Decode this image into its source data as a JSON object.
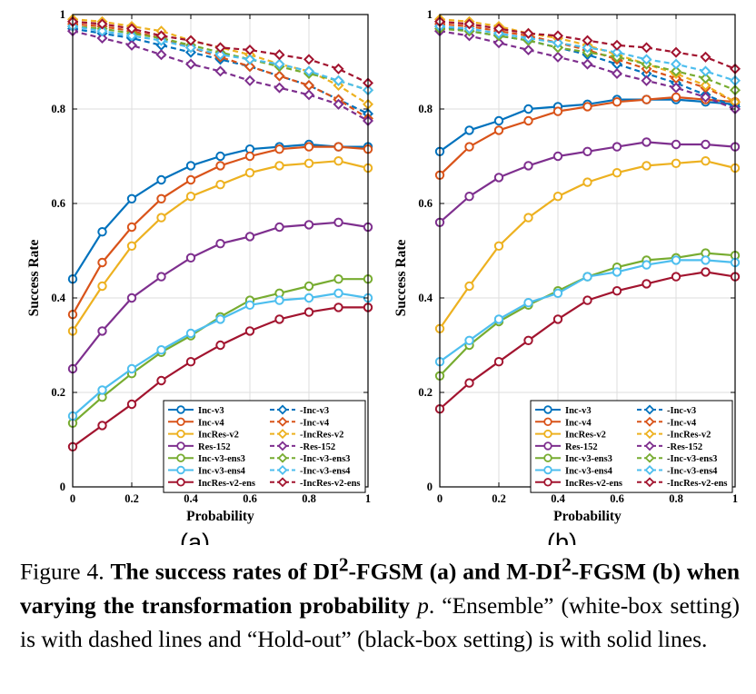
{
  "chart_data": [
    {
      "type": "line",
      "panel_label": "(a)",
      "xlabel": "Probability",
      "ylabel": "Success Rate",
      "xlim": [
        0,
        1
      ],
      "ylim": [
        0,
        1
      ],
      "x": [
        0,
        0.1,
        0.2,
        0.3,
        0.4,
        0.5,
        0.6,
        0.7,
        0.8,
        0.9,
        1.0
      ],
      "xticks": [
        "0",
        "0.2",
        "0.4",
        "0.6",
        "0.8",
        "1"
      ],
      "yticks": [
        "0",
        "0.2",
        "0.4",
        "0.6",
        "0.8",
        "1"
      ],
      "grid": true,
      "legend_position": "bottom-right",
      "series": [
        {
          "name": "Inc-v3",
          "style": "solid",
          "marker": "circle",
          "color": "#0072BD",
          "values": [
            0.44,
            0.54,
            0.61,
            0.65,
            0.68,
            0.7,
            0.715,
            0.72,
            0.725,
            0.72,
            0.72
          ]
        },
        {
          "name": "Inc-v4",
          "style": "solid",
          "marker": "circle",
          "color": "#D95319",
          "values": [
            0.365,
            0.475,
            0.55,
            0.61,
            0.65,
            0.68,
            0.7,
            0.715,
            0.72,
            0.72,
            0.715
          ]
        },
        {
          "name": "IncRes-v2",
          "style": "solid",
          "marker": "circle",
          "color": "#EDB120",
          "values": [
            0.33,
            0.425,
            0.51,
            0.57,
            0.615,
            0.64,
            0.665,
            0.68,
            0.685,
            0.69,
            0.675
          ]
        },
        {
          "name": "Res-152",
          "style": "solid",
          "marker": "circle",
          "color": "#7E2F8E",
          "values": [
            0.25,
            0.33,
            0.4,
            0.445,
            0.485,
            0.515,
            0.53,
            0.55,
            0.555,
            0.56,
            0.55
          ]
        },
        {
          "name": "Inc-v3-ens3",
          "style": "solid",
          "marker": "circle",
          "color": "#77AC30",
          "values": [
            0.135,
            0.19,
            0.24,
            0.285,
            0.32,
            0.36,
            0.395,
            0.41,
            0.425,
            0.44,
            0.44
          ]
        },
        {
          "name": "Inc-v3-ens4",
          "style": "solid",
          "marker": "circle",
          "color": "#4DBEEE",
          "values": [
            0.15,
            0.205,
            0.25,
            0.29,
            0.325,
            0.355,
            0.385,
            0.395,
            0.4,
            0.41,
            0.4
          ]
        },
        {
          "name": "IncRes-v2-ens",
          "style": "solid",
          "marker": "circle",
          "color": "#A2142F",
          "values": [
            0.085,
            0.13,
            0.175,
            0.225,
            0.265,
            0.3,
            0.33,
            0.355,
            0.37,
            0.38,
            0.38
          ]
        },
        {
          "name": "-Inc-v3",
          "style": "dashed",
          "marker": "diamond",
          "color": "#0072BD",
          "values": [
            0.97,
            0.96,
            0.95,
            0.935,
            0.92,
            0.905,
            0.89,
            0.87,
            0.85,
            0.82,
            0.79
          ]
        },
        {
          "name": "-Inc-v4",
          "style": "dashed",
          "marker": "diamond",
          "color": "#D95319",
          "values": [
            0.98,
            0.975,
            0.965,
            0.95,
            0.93,
            0.91,
            0.89,
            0.87,
            0.85,
            0.82,
            0.78
          ]
        },
        {
          "name": "-IncRes-v2",
          "style": "dashed",
          "marker": "diamond",
          "color": "#EDB120",
          "values": [
            0.99,
            0.985,
            0.975,
            0.965,
            0.945,
            0.93,
            0.915,
            0.895,
            0.88,
            0.85,
            0.81
          ]
        },
        {
          "name": "-Res-152",
          "style": "dashed",
          "marker": "diamond",
          "color": "#7E2F8E",
          "values": [
            0.965,
            0.95,
            0.935,
            0.915,
            0.895,
            0.88,
            0.86,
            0.845,
            0.83,
            0.81,
            0.775
          ]
        },
        {
          "name": "-Inc-v3-ens3",
          "style": "dashed",
          "marker": "diamond",
          "color": "#77AC30",
          "values": [
            0.975,
            0.97,
            0.96,
            0.95,
            0.935,
            0.92,
            0.905,
            0.89,
            0.875,
            0.86,
            0.84
          ]
        },
        {
          "name": "-Inc-v3-ens4",
          "style": "dashed",
          "marker": "diamond",
          "color": "#4DBEEE",
          "values": [
            0.975,
            0.965,
            0.955,
            0.945,
            0.93,
            0.915,
            0.905,
            0.895,
            0.88,
            0.86,
            0.84
          ]
        },
        {
          "name": "-IncRes-v2-ens",
          "style": "dashed",
          "marker": "diamond",
          "color": "#A2142F",
          "values": [
            0.985,
            0.98,
            0.97,
            0.955,
            0.945,
            0.93,
            0.925,
            0.915,
            0.905,
            0.885,
            0.855
          ]
        }
      ]
    },
    {
      "type": "line",
      "panel_label": "(b)",
      "xlabel": "Probability",
      "ylabel": "Success Rate",
      "xlim": [
        0,
        1
      ],
      "ylim": [
        0,
        1
      ],
      "x": [
        0,
        0.1,
        0.2,
        0.3,
        0.4,
        0.5,
        0.6,
        0.7,
        0.8,
        0.9,
        1.0
      ],
      "xticks": [
        "0",
        "0.2",
        "0.4",
        "0.6",
        "0.8",
        "1"
      ],
      "yticks": [
        "0",
        "0.2",
        "0.4",
        "0.6",
        "0.8",
        "1"
      ],
      "grid": true,
      "legend_position": "bottom-right",
      "series": [
        {
          "name": "Inc-v3",
          "style": "solid",
          "marker": "circle",
          "color": "#0072BD",
          "values": [
            0.71,
            0.755,
            0.775,
            0.8,
            0.805,
            0.81,
            0.82,
            0.82,
            0.82,
            0.815,
            0.81
          ]
        },
        {
          "name": "Inc-v4",
          "style": "solid",
          "marker": "circle",
          "color": "#D95319",
          "values": [
            0.66,
            0.72,
            0.755,
            0.775,
            0.795,
            0.805,
            0.815,
            0.82,
            0.825,
            0.82,
            0.815
          ]
        },
        {
          "name": "IncRes-v2",
          "style": "solid",
          "marker": "circle",
          "color": "#EDB120",
          "values": [
            0.335,
            0.425,
            0.51,
            0.57,
            0.615,
            0.645,
            0.665,
            0.68,
            0.685,
            0.69,
            0.675
          ]
        },
        {
          "name": "Res-152",
          "style": "solid",
          "marker": "circle",
          "color": "#7E2F8E",
          "values": [
            0.56,
            0.615,
            0.655,
            0.68,
            0.7,
            0.71,
            0.72,
            0.73,
            0.725,
            0.725,
            0.72
          ]
        },
        {
          "name": "Inc-v3-ens3",
          "style": "solid",
          "marker": "circle",
          "color": "#77AC30",
          "values": [
            0.235,
            0.3,
            0.35,
            0.385,
            0.415,
            0.445,
            0.465,
            0.48,
            0.485,
            0.495,
            0.49
          ]
        },
        {
          "name": "Inc-v3-ens4",
          "style": "solid",
          "marker": "circle",
          "color": "#4DBEEE",
          "values": [
            0.265,
            0.31,
            0.355,
            0.39,
            0.41,
            0.445,
            0.455,
            0.47,
            0.48,
            0.48,
            0.475
          ]
        },
        {
          "name": "IncRes-v2-ens",
          "style": "solid",
          "marker": "circle",
          "color": "#A2142F",
          "values": [
            0.165,
            0.22,
            0.265,
            0.31,
            0.355,
            0.395,
            0.415,
            0.43,
            0.445,
            0.455,
            0.445
          ]
        },
        {
          "name": "-Inc-v3",
          "style": "dashed",
          "marker": "diamond",
          "color": "#0072BD",
          "values": [
            0.975,
            0.965,
            0.955,
            0.945,
            0.93,
            0.915,
            0.895,
            0.875,
            0.855,
            0.83,
            0.805
          ]
        },
        {
          "name": "-Inc-v4",
          "style": "dashed",
          "marker": "diamond",
          "color": "#D95319",
          "values": [
            0.98,
            0.975,
            0.965,
            0.955,
            0.94,
            0.925,
            0.905,
            0.885,
            0.865,
            0.845,
            0.815
          ]
        },
        {
          "name": "-IncRes-v2",
          "style": "dashed",
          "marker": "diamond",
          "color": "#EDB120",
          "values": [
            0.99,
            0.985,
            0.975,
            0.96,
            0.95,
            0.935,
            0.915,
            0.895,
            0.875,
            0.85,
            0.815
          ]
        },
        {
          "name": "-Res-152",
          "style": "dashed",
          "marker": "diamond",
          "color": "#7E2F8E",
          "values": [
            0.965,
            0.955,
            0.94,
            0.925,
            0.91,
            0.895,
            0.875,
            0.86,
            0.845,
            0.825,
            0.8
          ]
        },
        {
          "name": "-Inc-v3-ens3",
          "style": "dashed",
          "marker": "diamond",
          "color": "#77AC30",
          "values": [
            0.97,
            0.965,
            0.955,
            0.945,
            0.93,
            0.92,
            0.91,
            0.895,
            0.88,
            0.865,
            0.84
          ]
        },
        {
          "name": "-Inc-v3-ens4",
          "style": "dashed",
          "marker": "diamond",
          "color": "#4DBEEE",
          "values": [
            0.975,
            0.97,
            0.96,
            0.95,
            0.94,
            0.93,
            0.92,
            0.905,
            0.895,
            0.88,
            0.86
          ]
        },
        {
          "name": "-IncRes-v2-ens",
          "style": "dashed",
          "marker": "diamond",
          "color": "#A2142F",
          "values": [
            0.985,
            0.98,
            0.97,
            0.96,
            0.955,
            0.945,
            0.935,
            0.93,
            0.92,
            0.91,
            0.885
          ]
        }
      ]
    }
  ],
  "caption": {
    "prefix": "Figure 4. ",
    "bold_1": "The success rates of DI",
    "sup_1": "2",
    "bold_2": "-FGSM (a) and M-DI",
    "sup_2": "2",
    "bold_3": "-FGSM (b) when varying the transformation probability",
    "var": "p",
    "rest": ". “Ensemble” (white-box setting) is with dashed lines and “Hold-out” (black-box setting) is with solid lines."
  }
}
